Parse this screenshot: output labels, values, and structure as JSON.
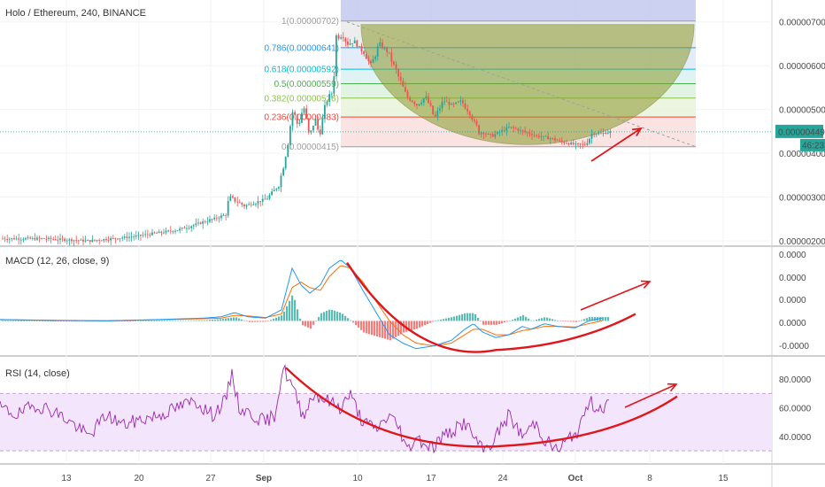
{
  "header": {
    "symbol_title": "Holo / Ethereum, 240, BINANCE"
  },
  "colors": {
    "up": "#26a69a",
    "down": "#ef5350",
    "macd": "#2196f3",
    "signal": "#ff6d00",
    "rsi": "#9c27b0",
    "rsi_band": "#f3e5fb",
    "annot": "#e0161b"
  },
  "price_axis": {
    "ticks": [
      "0.00000700",
      "0.00000600",
      "0.00000500",
      "0.00000400",
      "0.00000300",
      "0.00000200"
    ],
    "last_price": "0.00000449",
    "countdown": "46:23"
  },
  "fib_levels": [
    {
      "label": "1(0.00000702)",
      "value": 7.02,
      "color": "#9e9e9e"
    },
    {
      "label": "0.786(0.00000641)",
      "value": 6.41,
      "color": "#2196f3"
    },
    {
      "label": "0.618(0.00000592)",
      "value": 5.92,
      "color": "#00bcd4"
    },
    {
      "label": "0.5(0.00000559)",
      "value": 5.59,
      "color": "#4caf50"
    },
    {
      "label": "0.382(0.00000526)",
      "value": 5.26,
      "color": "#8bc34a"
    },
    {
      "label": "0.236(0.00000483)",
      "value": 4.83,
      "color": "#f44336"
    },
    {
      "label": "0(0.00000415)",
      "value": 4.15,
      "color": "#9e9e9e"
    }
  ],
  "macd": {
    "title": "MACD (12, 26, close, 9)",
    "ticks": [
      "0.0000",
      "0.0000",
      "0.0000",
      "0.0000",
      "-0.0000"
    ]
  },
  "rsi": {
    "title": "RSI (14, close)",
    "ticks": [
      "80.0000",
      "60.0000",
      "40.0000"
    ]
  },
  "time_axis": {
    "labels": [
      "13",
      "20",
      "27",
      "Sep",
      "10",
      "17",
      "24",
      "Oct",
      "8",
      "15"
    ]
  },
  "chart_data": [
    {
      "type": "candlestick",
      "title": "Holo / Ethereum, 240, BINANCE",
      "y_unit": "0.000001 ETH",
      "ylim": [
        1.9,
        7.5
      ],
      "x_ticks": [
        "13",
        "20",
        "27",
        "Sep",
        "10",
        "17",
        "24",
        "Oct",
        "8",
        "15"
      ],
      "series": [
        {
          "name": "Holo / Ethereum",
          "anchors": [
            [
              0,
              2.05
            ],
            [
              50,
              2.05
            ],
            [
              100,
              2.0
            ],
            [
              150,
              2.1
            ],
            [
              200,
              2.25
            ],
            [
              240,
              2.5
            ],
            [
              255,
              2.6
            ],
            [
              258,
              3.0
            ],
            [
              275,
              2.8
            ],
            [
              300,
              2.95
            ],
            [
              315,
              3.3
            ],
            [
              322,
              4.1
            ],
            [
              330,
              5.0
            ],
            [
              336,
              4.6
            ],
            [
              342,
              5.1
            ],
            [
              348,
              4.35
            ],
            [
              355,
              4.8
            ],
            [
              360,
              4.4
            ],
            [
              368,
              5.2
            ],
            [
              375,
              5.4
            ],
            [
              378,
              6.6
            ],
            [
              385,
              6.7
            ],
            [
              392,
              6.5
            ],
            [
              400,
              6.55
            ],
            [
              410,
              6.3
            ],
            [
              418,
              6.0
            ],
            [
              428,
              6.5
            ],
            [
              438,
              6.3
            ],
            [
              448,
              5.8
            ],
            [
              458,
              5.3
            ],
            [
              470,
              5.1
            ],
            [
              480,
              5.3
            ],
            [
              490,
              4.8
            ],
            [
              500,
              5.2
            ],
            [
              510,
              5.1
            ],
            [
              520,
              5.2
            ],
            [
              530,
              4.9
            ],
            [
              540,
              4.5
            ],
            [
              555,
              4.4
            ],
            [
              565,
              4.5
            ],
            [
              575,
              4.6
            ],
            [
              590,
              4.5
            ],
            [
              605,
              4.4
            ],
            [
              620,
              4.35
            ],
            [
              635,
              4.25
            ],
            [
              650,
              4.2
            ],
            [
              660,
              4.2
            ],
            [
              668,
              4.45
            ],
            [
              678,
              4.45
            ],
            [
              688,
              4.49
            ]
          ]
        }
      ],
      "fibonacci": [
        {
          "level": "1",
          "value": 7.02
        },
        {
          "level": "0.786",
          "value": 6.41
        },
        {
          "level": "0.618",
          "value": 5.92
        },
        {
          "level": "0.5",
          "value": 5.59
        },
        {
          "level": "0.382",
          "value": 5.26
        },
        {
          "level": "0.236",
          "value": 4.83
        },
        {
          "level": "0",
          "value": 4.15
        }
      ],
      "last_price": 4.49
    },
    {
      "type": "line",
      "title": "MACD (12, 26, close, 9)",
      "y_unit": "normalized",
      "ylim": [
        -1.2,
        2.6
      ],
      "series": [
        {
          "name": "MACD",
          "anchors": [
            [
              0,
              0.05
            ],
            [
              60,
              0.02
            ],
            [
              120,
              0.0
            ],
            [
              180,
              0.05
            ],
            [
              230,
              0.1
            ],
            [
              250,
              0.15
            ],
            [
              265,
              0.3
            ],
            [
              280,
              0.15
            ],
            [
              300,
              0.1
            ],
            [
              318,
              0.4
            ],
            [
              330,
              1.9
            ],
            [
              340,
              1.3
            ],
            [
              350,
              1.0
            ],
            [
              362,
              1.3
            ],
            [
              372,
              1.9
            ],
            [
              385,
              2.2
            ],
            [
              396,
              1.9
            ],
            [
              410,
              1.1
            ],
            [
              425,
              0.3
            ],
            [
              440,
              -0.5
            ],
            [
              455,
              -0.8
            ],
            [
              470,
              -1.0
            ],
            [
              490,
              -0.9
            ],
            [
              510,
              -0.7
            ],
            [
              525,
              -0.3
            ],
            [
              535,
              -0.1
            ],
            [
              545,
              -0.4
            ],
            [
              560,
              -0.6
            ],
            [
              575,
              -0.5
            ],
            [
              590,
              -0.2
            ],
            [
              600,
              -0.3
            ],
            [
              615,
              -0.1
            ],
            [
              630,
              -0.2
            ],
            [
              650,
              -0.25
            ],
            [
              665,
              0.0
            ],
            [
              680,
              0.1
            ]
          ]
        },
        {
          "name": "Signal",
          "anchors": [
            [
              0,
              0.04
            ],
            [
              60,
              0.02
            ],
            [
              120,
              0.01
            ],
            [
              180,
              0.04
            ],
            [
              230,
              0.08
            ],
            [
              250,
              0.1
            ],
            [
              265,
              0.2
            ],
            [
              280,
              0.18
            ],
            [
              300,
              0.12
            ],
            [
              318,
              0.25
            ],
            [
              330,
              1.2
            ],
            [
              340,
              1.4
            ],
            [
              350,
              1.2
            ],
            [
              362,
              1.1
            ],
            [
              372,
              1.6
            ],
            [
              385,
              2.0
            ],
            [
              396,
              1.9
            ],
            [
              410,
              1.4
            ],
            [
              425,
              0.7
            ],
            [
              440,
              0.0
            ],
            [
              455,
              -0.5
            ],
            [
              470,
              -0.8
            ],
            [
              490,
              -0.9
            ],
            [
              510,
              -0.8
            ],
            [
              525,
              -0.5
            ],
            [
              535,
              -0.3
            ],
            [
              545,
              -0.3
            ],
            [
              560,
              -0.5
            ],
            [
              575,
              -0.5
            ],
            [
              590,
              -0.35
            ],
            [
              600,
              -0.3
            ],
            [
              615,
              -0.2
            ],
            [
              630,
              -0.2
            ],
            [
              650,
              -0.22
            ],
            [
              665,
              -0.1
            ],
            [
              680,
              0.0
            ]
          ]
        }
      ]
    },
    {
      "type": "line",
      "title": "RSI (14, close)",
      "ylim": [
        22,
        95
      ],
      "bands": [
        30,
        70
      ],
      "series": [
        {
          "name": "RSI",
          "anchors": [
            [
              0,
              60
            ],
            [
              20,
              55
            ],
            [
              40,
              62
            ],
            [
              60,
              58
            ],
            [
              80,
              50
            ],
            [
              100,
              40
            ],
            [
              120,
              55
            ],
            [
              140,
              48
            ],
            [
              160,
              52
            ],
            [
              180,
              55
            ],
            [
              200,
              60
            ],
            [
              220,
              65
            ],
            [
              240,
              55
            ],
            [
              255,
              65
            ],
            [
              262,
              85
            ],
            [
              270,
              60
            ],
            [
              285,
              55
            ],
            [
              300,
              50
            ],
            [
              310,
              55
            ],
            [
              320,
              88
            ],
            [
              330,
              75
            ],
            [
              342,
              55
            ],
            [
              355,
              70
            ],
            [
              370,
              65
            ],
            [
              385,
              60
            ],
            [
              395,
              70
            ],
            [
              410,
              50
            ],
            [
              425,
              45
            ],
            [
              440,
              55
            ],
            [
              452,
              45
            ],
            [
              460,
              30
            ],
            [
              470,
              40
            ],
            [
              480,
              35
            ],
            [
              490,
              33
            ],
            [
              500,
              40
            ],
            [
              515,
              45
            ],
            [
              525,
              50
            ],
            [
              535,
              40
            ],
            [
              545,
              30
            ],
            [
              555,
              35
            ],
            [
              565,
              45
            ],
            [
              575,
              55
            ],
            [
              590,
              40
            ],
            [
              605,
              50
            ],
            [
              615,
              38
            ],
            [
              630,
              30
            ],
            [
              645,
              40
            ],
            [
              655,
              45
            ],
            [
              665,
              65
            ],
            [
              675,
              60
            ],
            [
              688,
              62
            ]
          ]
        }
      ]
    }
  ]
}
